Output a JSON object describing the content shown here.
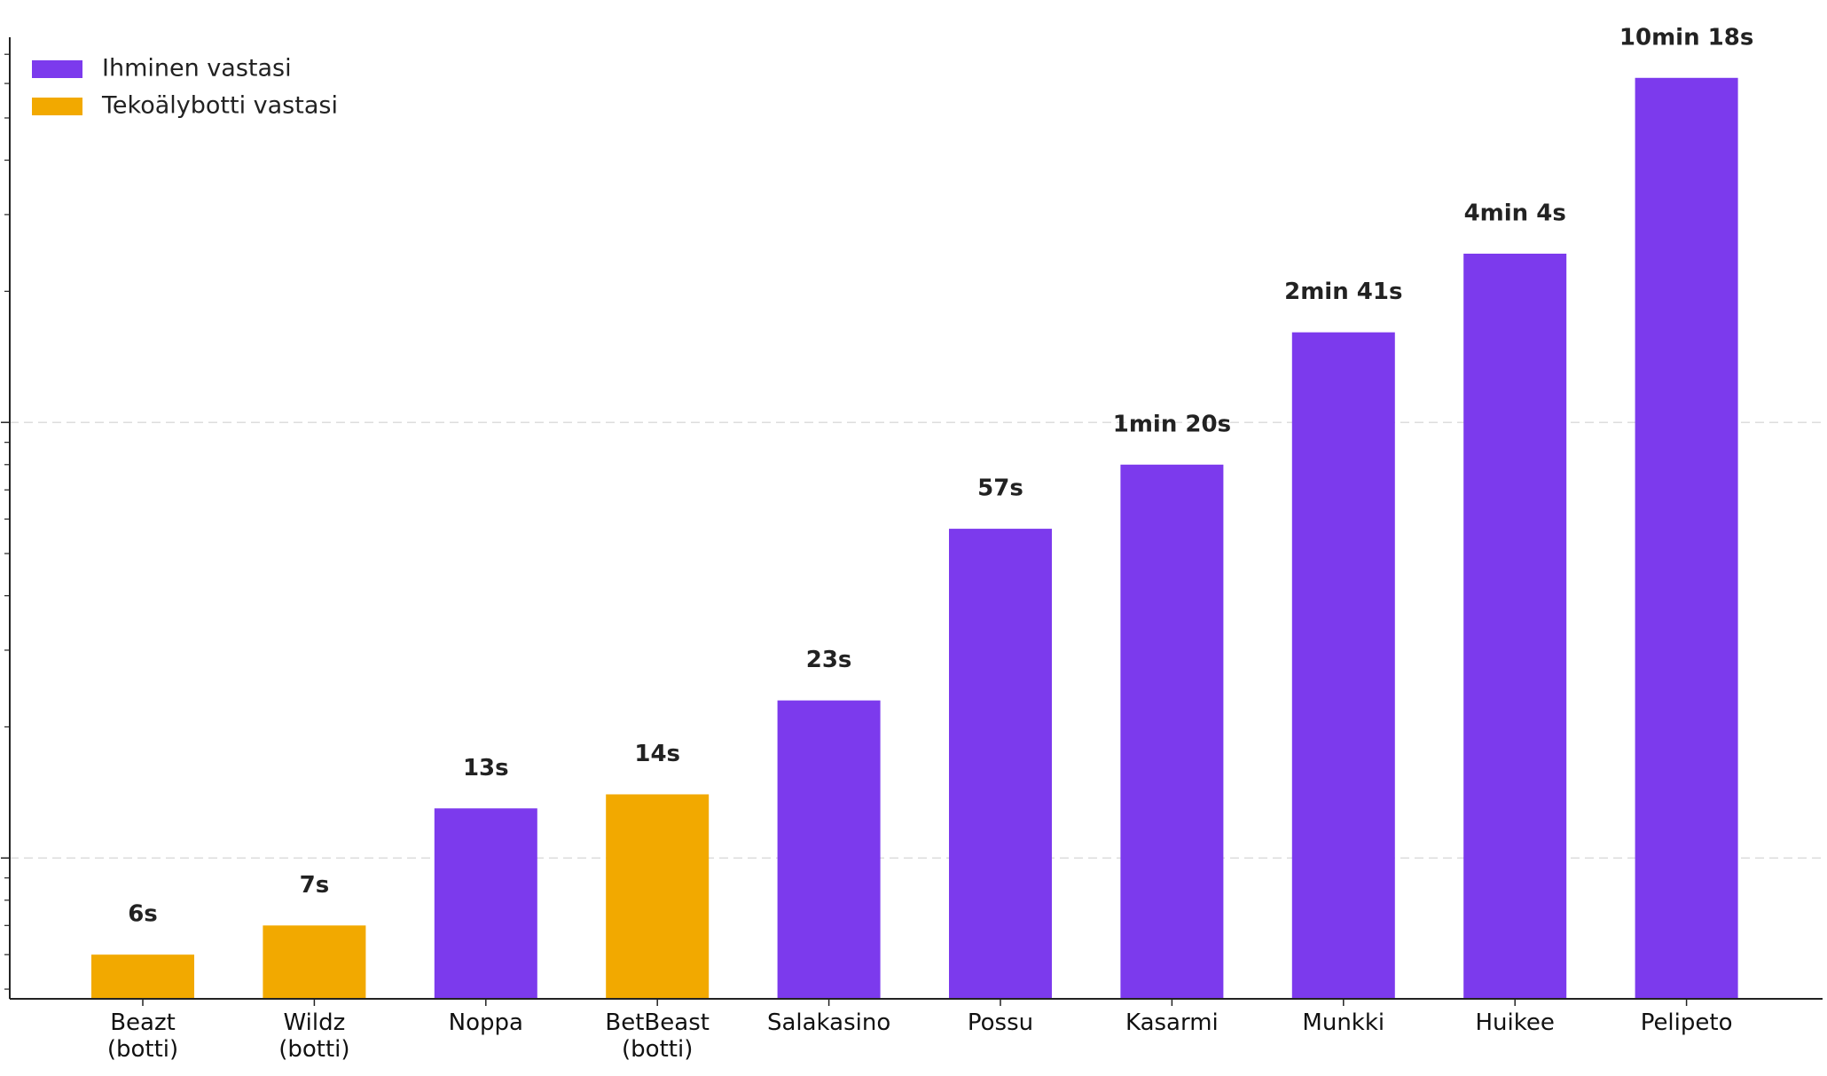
{
  "chart_data": {
    "type": "bar",
    "log_scale": true,
    "grid": true,
    "legend": "upper left",
    "categories": [
      "Beazt\n(botti)",
      "Wildz\n(botti)",
      "Noppa",
      "BetBeast\n(botti)",
      "Salakasino",
      "Possu",
      "Kasarmi",
      "Munkki",
      "Huikee",
      "Pelipeto"
    ],
    "series": [
      {
        "name": "Ihminen vastasi",
        "color": "#7c3aed",
        "values": [
          null,
          null,
          13,
          null,
          23,
          57,
          80,
          161,
          244,
          618
        ],
        "value_labels": [
          null,
          null,
          "13s",
          null,
          "23s",
          "57s",
          "1min 20s",
          "2min 41s",
          "4min 4s",
          "10min 18s"
        ]
      },
      {
        "name": "Tekoälybotti vastasi",
        "color": "#f2a900",
        "values": [
          6,
          7,
          null,
          14,
          null,
          null,
          null,
          null,
          null,
          null
        ],
        "value_labels": [
          "6s",
          "7s",
          null,
          "14s",
          null,
          null,
          null,
          null,
          null,
          null
        ]
      }
    ],
    "ylim": [
      4.75,
      766
    ],
    "yticks": [
      10,
      100
    ],
    "yminorticks": [
      5,
      6,
      7,
      8,
      9,
      20,
      30,
      40,
      50,
      60,
      70,
      80,
      90,
      200,
      300,
      400,
      500,
      600,
      700
    ]
  }
}
